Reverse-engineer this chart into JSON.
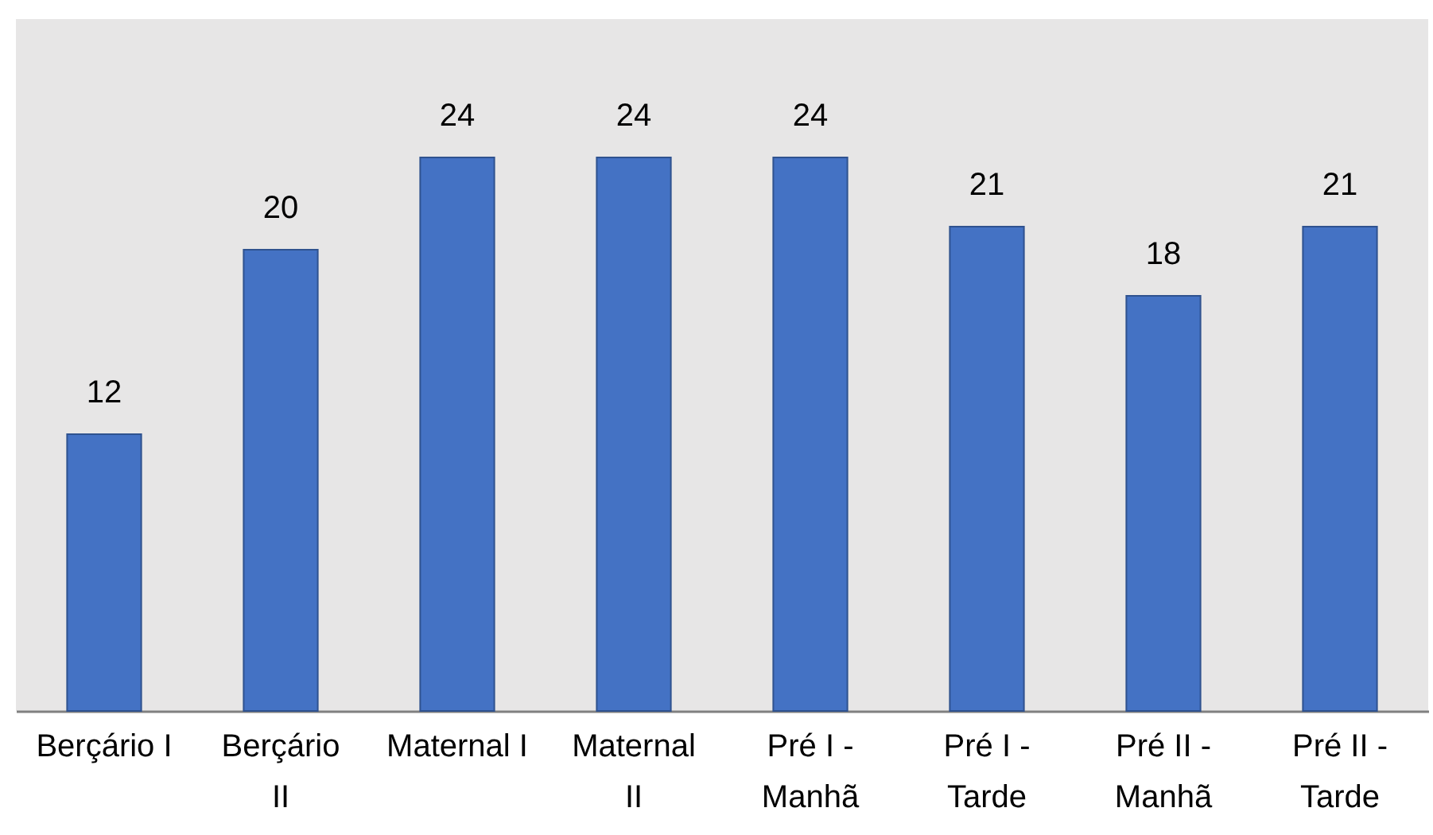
{
  "chart_data": {
    "type": "bar",
    "categories": [
      "Berçário I",
      "Berçário II",
      "Maternal I",
      "Maternal II",
      "Pré I - Manhã",
      "Pré I - Tarde",
      "Pré II - Manhã",
      "Pré II - Tarde"
    ],
    "values": [
      12,
      20,
      24,
      24,
      24,
      21,
      18,
      21
    ],
    "color": "#4472c4",
    "ylim": [
      0,
      30
    ],
    "data_labels": true,
    "grid": false,
    "tick_labels": "x"
  }
}
